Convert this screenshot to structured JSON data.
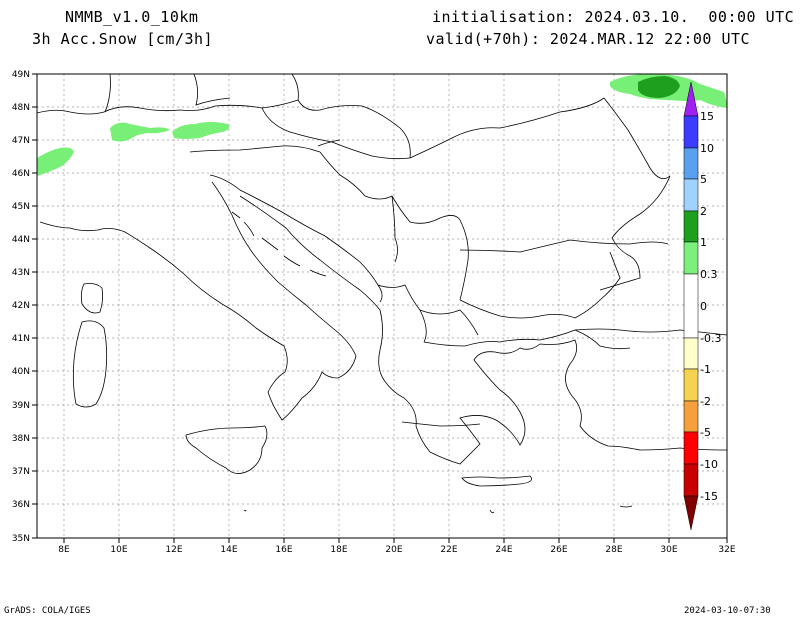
{
  "header": {
    "model": "NMMB_v1.0_10km",
    "variable": "3h Acc.Snow [cm/3h]",
    "init": "initialisation: 2024.03.10.  00:00 UTC",
    "valid": "valid(+70h): 2024.MAR.12 22:00 UTC"
  },
  "footer": {
    "credit": "GrADS: COLA/IGES",
    "timestamp": "2024-03-10-07:30"
  },
  "map": {
    "lon_labels": [
      "8E",
      "10E",
      "12E",
      "14E",
      "16E",
      "18E",
      "20E",
      "22E",
      "24E",
      "26E",
      "28E",
      "30E",
      "32E"
    ],
    "lat_labels": [
      "49N",
      "48N",
      "47N",
      "46N",
      "45N",
      "44N",
      "43N",
      "42N",
      "41N",
      "40N",
      "39N",
      "38N",
      "37N",
      "36N",
      "35N"
    ]
  },
  "colorbar": {
    "labels": [
      "15",
      "10",
      "5",
      "2",
      "1",
      "0.3",
      "0",
      "-0.3",
      "-1",
      "-2",
      "-5",
      "-10",
      "-15"
    ],
    "colors": {
      "c15": "#a020f0",
      "c10": "#3c3cff",
      "c5": "#5aa0f0",
      "c2": "#a0d2ff",
      "c1": "#1ea01e",
      "c03": "#7cf07c",
      "c0": "#ffffff",
      "m03": "#ffffcc",
      "m1": "#f5d250",
      "m2": "#f5a03c",
      "m5": "#f07828",
      "m10": "#ff0000",
      "m15": "#c80000",
      "tip": "#800000"
    }
  },
  "snow_colors": {
    "light": "#78f078",
    "dark": "#1ea01e"
  }
}
